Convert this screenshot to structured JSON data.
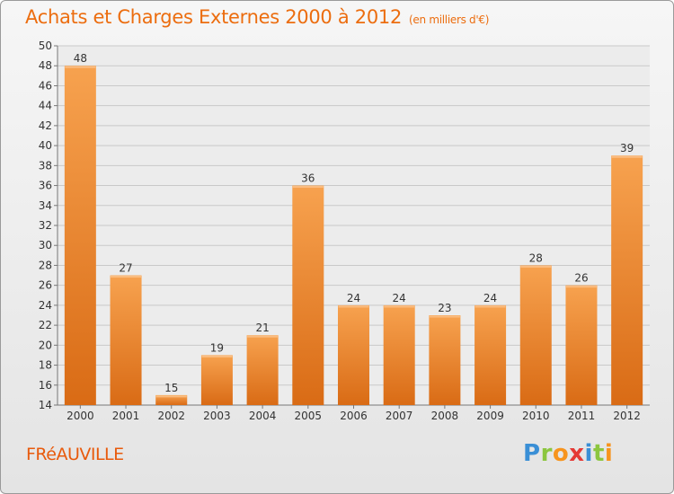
{
  "header": {
    "title": "Achats et Charges Externes 2000 à 2012",
    "subtitle": "(en milliers d'€)"
  },
  "footer": {
    "town": "FRéAUVILLE",
    "logo_letters": [
      {
        "char": "P",
        "color": "#3a8fd6"
      },
      {
        "char": "r",
        "color": "#8cc63f"
      },
      {
        "char": "o",
        "color": "#f7941d"
      },
      {
        "char": "x",
        "color": "#e53935"
      },
      {
        "char": "i",
        "color": "#3a8fd6"
      },
      {
        "char": "t",
        "color": "#8cc63f"
      },
      {
        "char": "i",
        "color": "#f7941d"
      }
    ]
  },
  "chart_data": {
    "type": "bar",
    "categories": [
      "2000",
      "2001",
      "2002",
      "2003",
      "2004",
      "2005",
      "2006",
      "2007",
      "2008",
      "2009",
      "2010",
      "2011",
      "2012"
    ],
    "values": [
      48,
      27,
      15,
      19,
      21,
      36,
      24,
      24,
      23,
      24,
      28,
      26,
      39
    ],
    "ylim": [
      14,
      50
    ],
    "ytick_step": 2,
    "grid": true,
    "bar_color": "#f0862a",
    "title_color": "#ec6d0f"
  }
}
